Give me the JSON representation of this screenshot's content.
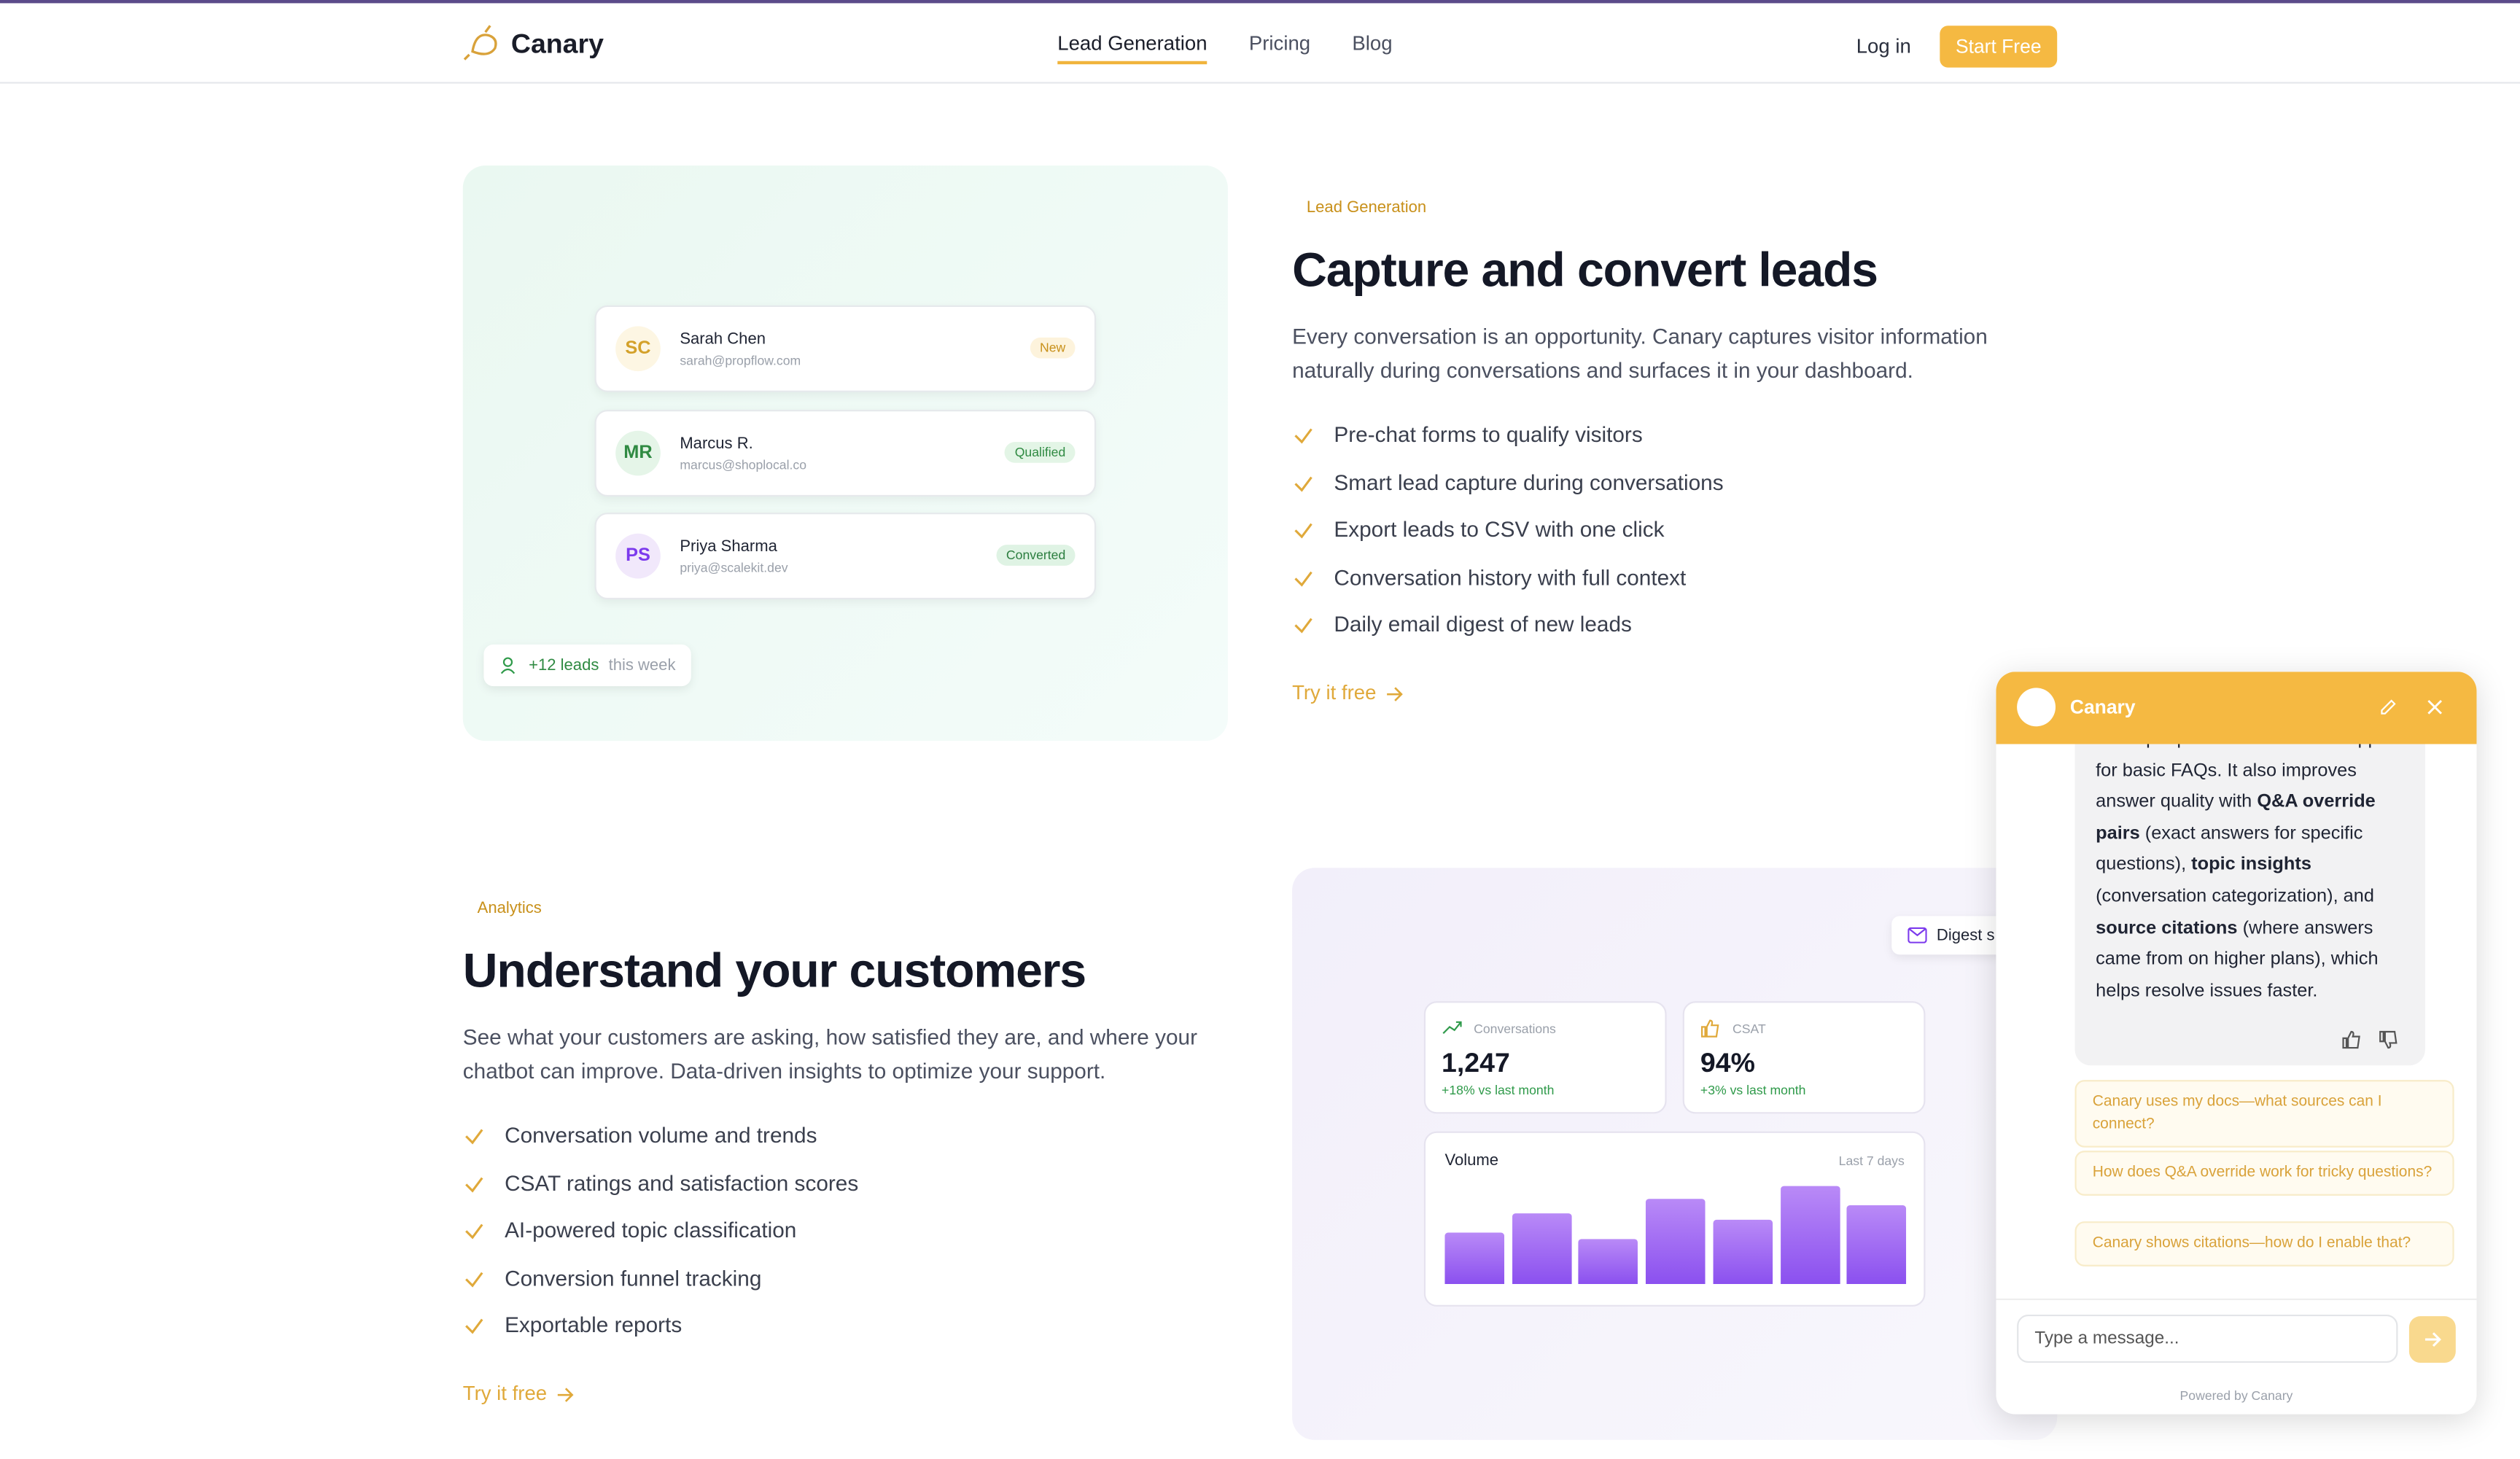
{
  "nav": {
    "brand": "Canary",
    "links": [
      "Lead Generation",
      "Pricing",
      "Blog"
    ],
    "login": "Log in",
    "cta": "Start Free"
  },
  "sections": [
    {
      "tag": "Lead Generation",
      "title": "Capture and convert leads",
      "description": "Every conversation is an opportunity. Canary captures visitor information naturally during conversations and surfaces it in your dashboard.",
      "features": [
        "Pre-chat forms to qualify visitors",
        "Smart lead capture during conversations",
        "Export leads to CSV with one click",
        "Conversation history with full context",
        "Daily email digest of new leads"
      ],
      "link": "Try it free"
    },
    {
      "tag": "Analytics",
      "title": "Understand your customers",
      "description": "See what your customers are asking, how satisfied they are, and where your chatbot can improve. Data-driven insights to optimize your support.",
      "features": [
        "Conversation volume and trends",
        "CSAT ratings and satisfaction scores",
        "AI-powered topic classification",
        "Conversion funnel tracking",
        "Exportable reports"
      ],
      "link": "Try it free"
    }
  ],
  "leads": {
    "cards": [
      {
        "initials": "SC",
        "name": "Sarah Chen",
        "email": "sarah@propflow.com",
        "status": "New"
      },
      {
        "initials": "MR",
        "name": "Marcus R.",
        "email": "marcus@shoplocal.co",
        "status": "Qualified"
      },
      {
        "initials": "PS",
        "name": "Priya Sharma",
        "email": "priya@scalekit.dev",
        "status": "Converted"
      }
    ],
    "summary": {
      "count": "+12 leads",
      "period": "this week"
    }
  },
  "analytics": {
    "digest": "Digest s",
    "stats": [
      {
        "label": "Conversations",
        "value": "1,247",
        "change": "+18% vs last month"
      },
      {
        "label": "CSAT",
        "value": "94%",
        "change": "+3% vs last month"
      }
    ],
    "volume": {
      "title": "Volume",
      "period": "Last 7 days",
      "values": [
        32,
        44,
        28,
        53,
        40,
        61,
        49
      ]
    }
  },
  "chat": {
    "name": "Canary",
    "message": [
      {
        "text": "fewer people need to contact support for basic FAQs. It also improves answer quality with ",
        "bold": false
      },
      {
        "text": "Q&A override pairs",
        "bold": true
      },
      {
        "text": " (exact answers for specific questions), ",
        "bold": false
      },
      {
        "text": "topic insights",
        "bold": true
      },
      {
        "text": " (conversation categorization), and ",
        "bold": false
      },
      {
        "text": "source citations",
        "bold": true
      },
      {
        "text": " (where answers came from on higher plans), which helps resolve issues faster.",
        "bold": false
      }
    ],
    "suggestions": [
      "Canary uses my docs—what sources can I connect?",
      "How does Q&A override work for tricky questions?",
      "Canary shows citations—how do I enable that?"
    ],
    "placeholder": "Type a message...",
    "footer": "Powered by Canary"
  }
}
